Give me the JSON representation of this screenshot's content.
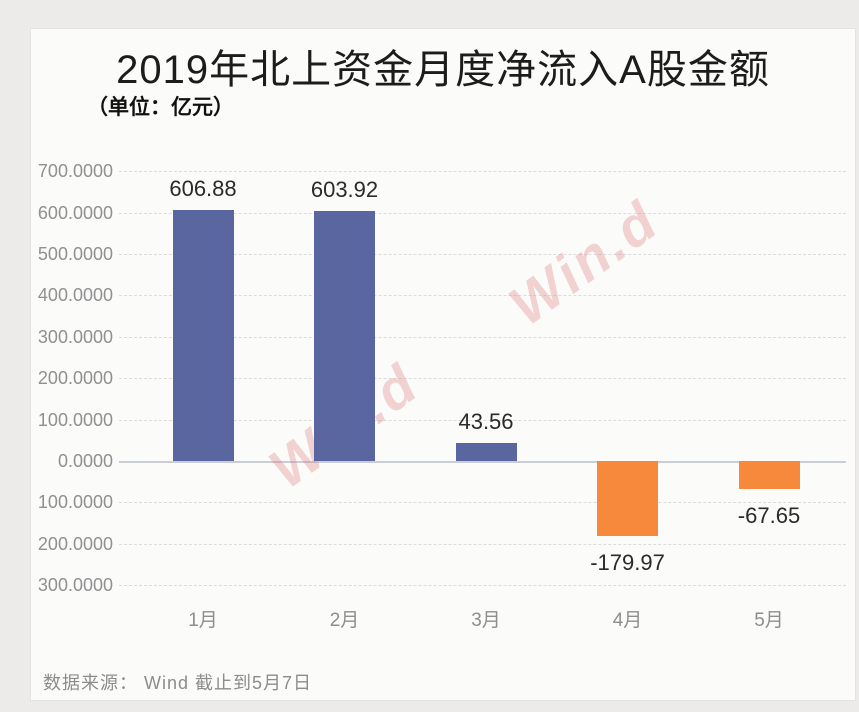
{
  "header": {
    "title": "2019年北上资金月度净流入A股金额",
    "subtitle": "（单位：亿元）"
  },
  "footer": {
    "source": "数据来源： Wind  截止到5月7日"
  },
  "watermark": {
    "text": "Win.d"
  },
  "chart_data": {
    "type": "bar",
    "title": "2019年北上资金月度净流入A股金额",
    "subtitle_unit": "（单位：亿元）",
    "unit": "亿元",
    "categories": [
      "1月",
      "2月",
      "3月",
      "4月",
      "5月"
    ],
    "values": [
      606.88,
      603.92,
      43.56,
      -179.97,
      -67.65
    ],
    "bar_labels": [
      "606.88",
      "603.92",
      "43.56",
      "-179.97",
      "-67.65"
    ],
    "series_name": "北上资金月度净流入A股金额",
    "ylim": [
      -300,
      700
    ],
    "ytick_interval": 100,
    "yticks": [
      {
        "value": 700,
        "label": "700.0000"
      },
      {
        "value": 600,
        "label": "600.0000"
      },
      {
        "value": 500,
        "label": "500.0000"
      },
      {
        "value": 400,
        "label": "400.0000"
      },
      {
        "value": 300,
        "label": "300.0000"
      },
      {
        "value": 200,
        "label": "200.0000"
      },
      {
        "value": 100,
        "label": "100.0000"
      },
      {
        "value": 0,
        "label": "0.0000"
      },
      {
        "value": -100,
        "label": "100.0000"
      },
      {
        "value": -200,
        "label": "200.0000"
      },
      {
        "value": -300,
        "label": "300.0000"
      }
    ],
    "grid": "horizontal-dashed",
    "legend": "none",
    "positive_color": "#5a66a0",
    "negative_color": "#f6893b",
    "watermark": "Win.d",
    "source_note": "数据来源： Wind  截止到5月7日"
  }
}
